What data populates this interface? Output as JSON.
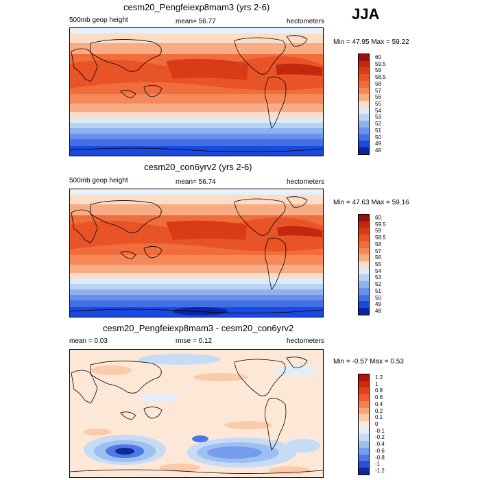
{
  "season": "JJA",
  "panels": [
    {
      "id": "p1",
      "title": "cesm20_Pengfeiexp8mam3 (yrs 2-6)",
      "left_label": "500mb geop height",
      "center_label": "mean=  56.77",
      "right_label": "hectometers",
      "minmax": "Min =  47.95 Max =  59.22",
      "colorbar_levels": [
        "60",
        "59.5",
        "59",
        "58.5",
        "58",
        "57",
        "56",
        "55",
        "54",
        "53",
        "52",
        "51",
        "50",
        "49",
        "48"
      ],
      "colorbar_colors": [
        "#9a0f0f",
        "#c3270f",
        "#da3b17",
        "#e95427",
        "#f06d3c",
        "#f5895a",
        "#f8ac86",
        "#fbdcc4",
        "#dfeaf7",
        "#b9d2f2",
        "#8fb2ee",
        "#6a91ea",
        "#4170e6",
        "#1b48dd",
        "#0b249f"
      ]
    },
    {
      "id": "p2",
      "title": "cesm20_con6yrv2 (yrs 2-6)",
      "left_label": "500mb geop height",
      "center_label": "mean=  56.74",
      "right_label": "hectometers",
      "minmax": "Min =  47.63 Max =  59.16",
      "colorbar_levels": [
        "60",
        "59.5",
        "59",
        "58.5",
        "58",
        "57",
        "56",
        "55",
        "54",
        "53",
        "52",
        "51",
        "50",
        "49",
        "48"
      ],
      "colorbar_colors": [
        "#9a0f0f",
        "#c3270f",
        "#da3b17",
        "#e95427",
        "#f06d3c",
        "#f5895a",
        "#f8ac86",
        "#fbdcc4",
        "#dfeaf7",
        "#b9d2f2",
        "#8fb2ee",
        "#6a91ea",
        "#4170e6",
        "#1b48dd",
        "#0b249f"
      ]
    },
    {
      "id": "p3",
      "title": "cesm20_Pengfeiexp8mam3 - cesm20_con6yrv2",
      "left_label": "mean =   0.03",
      "center_label": "rmse =   0.12",
      "right_label": "hectometers",
      "minmax": "Min =  -0.57 Max =   0.53",
      "colorbar_levels": [
        "1.2",
        "1",
        "0.8",
        "0.6",
        "0.4",
        "0.2",
        "0.1",
        "0",
        "-0.1",
        "-0.2",
        "-0.4",
        "-0.6",
        "-0.8",
        "-1",
        "-1.2"
      ],
      "colorbar_colors": [
        "#b01212",
        "#cc2a10",
        "#e2401a",
        "#ee5d30",
        "#f5814f",
        "#f9a57a",
        "#fbcaa9",
        "#fde8d8",
        "#e3eefa",
        "#c6dbf6",
        "#9ebff2",
        "#759ded",
        "#4d78e5",
        "#2a4fd8",
        "#10289a"
      ]
    }
  ],
  "chart_data": [
    {
      "type": "heatmap",
      "title": "cesm20_Pengfeiexp8mam3 (yrs 2-6)",
      "variable": "500mb geop height",
      "units": "hectometers",
      "mean": 56.77,
      "min": 47.95,
      "max": 59.22,
      "levels": [
        48,
        49,
        50,
        51,
        52,
        53,
        54,
        55,
        56,
        57,
        58,
        58.5,
        59,
        59.5,
        60
      ]
    },
    {
      "type": "heatmap",
      "title": "cesm20_con6yrv2 (yrs 2-6)",
      "variable": "500mb geop height",
      "units": "hectometers",
      "mean": 56.74,
      "min": 47.63,
      "max": 59.16,
      "levels": [
        48,
        49,
        50,
        51,
        52,
        53,
        54,
        55,
        56,
        57,
        58,
        58.5,
        59,
        59.5,
        60
      ]
    },
    {
      "type": "heatmap",
      "title": "cesm20_Pengfeiexp8mam3 - cesm20_con6yrv2",
      "units": "hectometers",
      "mean": 0.03,
      "rmse": 0.12,
      "min": -0.57,
      "max": 0.53,
      "levels": [
        -1.2,
        -1,
        -0.8,
        -0.6,
        -0.4,
        -0.2,
        -0.1,
        0,
        0.1,
        0.2,
        0.4,
        0.6,
        0.8,
        1,
        1.2
      ]
    }
  ]
}
